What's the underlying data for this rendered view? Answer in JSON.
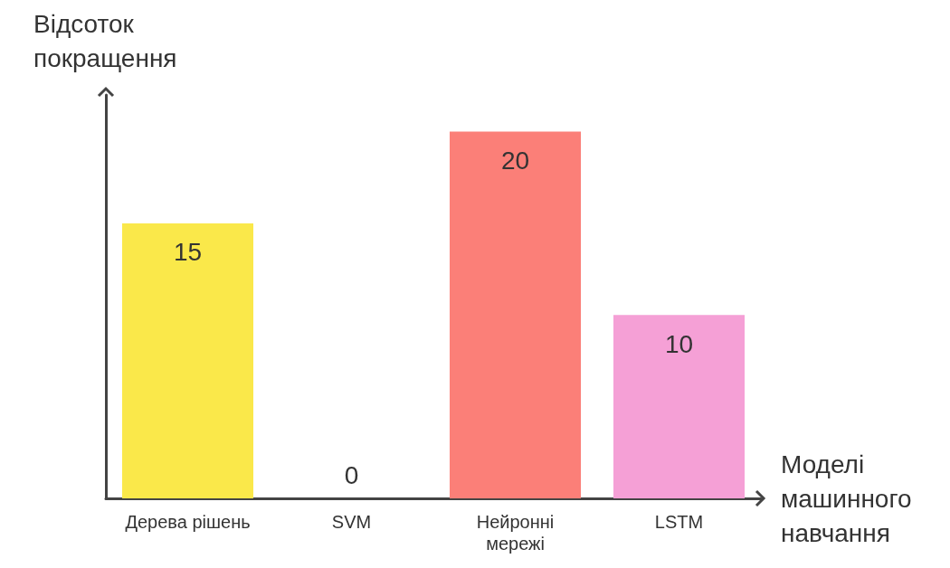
{
  "chart_data": {
    "type": "bar",
    "xlabel": "Моделі машинного навчання",
    "ylabel": "Відсоток покращення",
    "categories": [
      "Дерева рішень",
      "SVM",
      "Нейронні мережі",
      "LSTM"
    ],
    "values": [
      15,
      0,
      20,
      10
    ],
    "colors": [
      "#fae84a",
      "#bdbdbd",
      "#fb7f78",
      "#f5a0d6"
    ],
    "data_labels": true,
    "grid": false
  }
}
